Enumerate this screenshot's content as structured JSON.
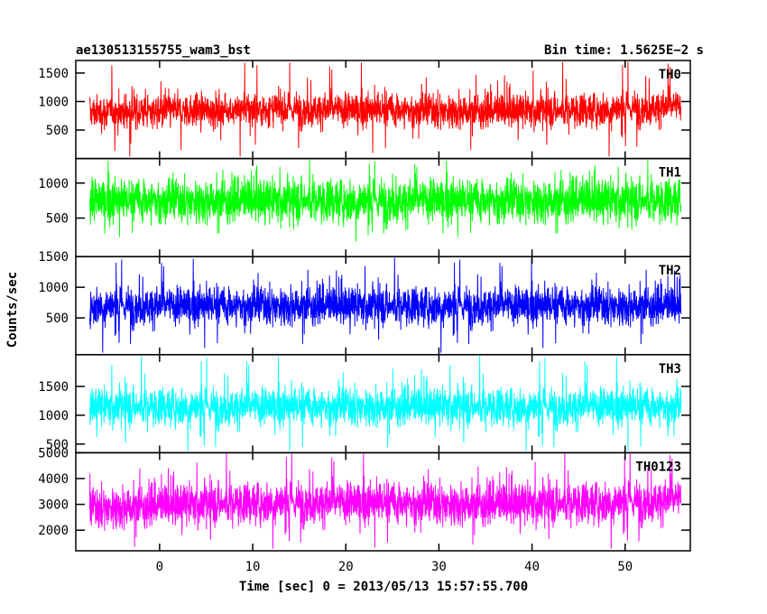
{
  "header": {
    "title": "ae130513155755_wam3_bst",
    "bin_time": "Bin time: 1.5625E−2 s"
  },
  "chart_data": {
    "type": "line",
    "xlabel": "Time [sec] 0 = 2013/05/13 15:57:55.700",
    "ylabel": "Counts/sec",
    "xlim": [
      -9,
      57
    ],
    "x_ticks": [
      0,
      10,
      20,
      30,
      40,
      50
    ],
    "x_range": [
      -7.5,
      56
    ],
    "panels": [
      {
        "name": "TH0",
        "color": "#ff0000",
        "ylim": [
          0,
          1720
        ],
        "yticks": [
          500,
          1000,
          1500
        ],
        "mean": 850,
        "typical_min": 350,
        "typical_max": 1350,
        "peak_max": 1720,
        "trend": [
          0.95,
          1.0,
          1.02,
          1.0,
          0.98,
          1.0,
          1.08
        ]
      },
      {
        "name": "TH1",
        "color": "#00ff00",
        "ylim": [
          -50,
          1350
        ],
        "yticks": [
          500,
          1000
        ],
        "mean": 750,
        "typical_min": 200,
        "typical_max": 1250,
        "peak_max": 1350,
        "trend": [
          1.0,
          1.0,
          1.0,
          1.0,
          1.0,
          1.0,
          1.0
        ]
      },
      {
        "name": "TH2",
        "color": "#0000ff",
        "ylim": [
          -100,
          1500
        ],
        "yticks": [
          500,
          1000,
          1500
        ],
        "mean": 700,
        "typical_min": 200,
        "typical_max": 1250,
        "peak_max": 1500,
        "trend": [
          1.0,
          1.0,
          1.0,
          1.0,
          1.0,
          1.0,
          1.0
        ]
      },
      {
        "name": "TH3",
        "color": "#00ffff",
        "ylim": [
          350,
          2050
        ],
        "yticks": [
          500,
          1000,
          1500
        ],
        "mean": 1150,
        "typical_min": 650,
        "typical_max": 1750,
        "peak_max": 2050,
        "trend": [
          1.0,
          1.0,
          1.0,
          1.0,
          1.0,
          1.0,
          1.0
        ]
      },
      {
        "name": "TH0123",
        "color": "#ff00ff",
        "ylim": [
          1200,
          5000
        ],
        "yticks": [
          2000,
          3000,
          4000,
          5000
        ],
        "mean": 3000,
        "typical_min": 1700,
        "typical_max": 4400,
        "peak_max": 5000,
        "trend": [
          0.95,
          1.0,
          1.03,
          1.02,
          1.0,
          1.02,
          1.06
        ]
      }
    ]
  }
}
